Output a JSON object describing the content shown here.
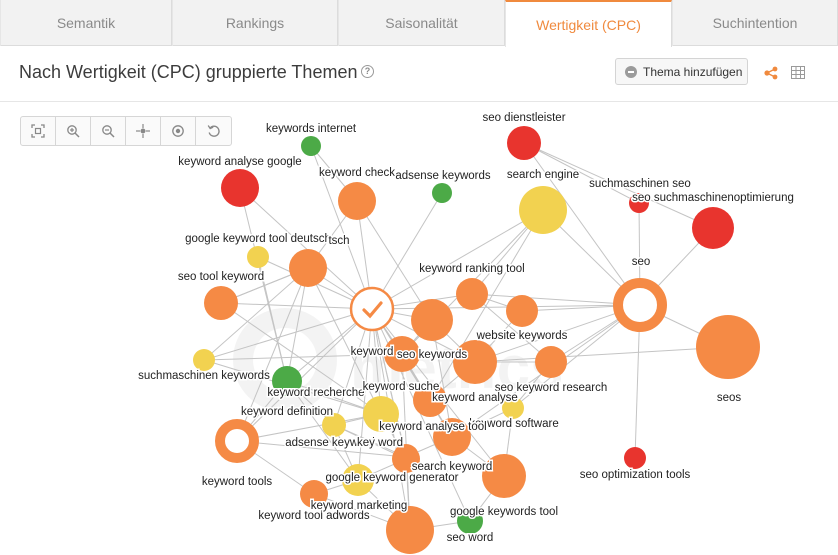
{
  "tabs": [
    {
      "label": "Semantik",
      "active": false
    },
    {
      "label": "Rankings",
      "active": false
    },
    {
      "label": "Saisonalität",
      "active": false
    },
    {
      "label": "Wertigkeit (CPC)",
      "active": true
    },
    {
      "label": "Suchintention",
      "active": false
    }
  ],
  "header": {
    "title": "Nach Wertigkeit (CPC) gruppierte Themen",
    "info_icon": "?",
    "add_button_label": "Thema hinzufügen"
  },
  "toolbar": [
    "fit-screen-icon",
    "zoom-in-icon",
    "zoom-out-icon",
    "center-icon",
    "target-icon",
    "reset-icon"
  ],
  "colors": {
    "accent": "#f08a3e",
    "high": "#e8342e",
    "medium_high": "#f58a45",
    "medium": "#f2d250",
    "low": "#4caa47",
    "edge": "#c4c4c4"
  },
  "graph": {
    "hub": "keyword",
    "nodes": [
      {
        "id": "keywords internet",
        "color": "low",
        "size": 10
      },
      {
        "id": "seo dienstleister",
        "color": "high",
        "size": 17
      },
      {
        "id": "keyword analyse google",
        "color": "high",
        "size": 19
      },
      {
        "id": "keyword check",
        "color": "medium_high",
        "size": 19
      },
      {
        "id": "adsense keywords",
        "color": "low",
        "size": 10
      },
      {
        "id": "search engine",
        "color": "medium",
        "size": 24
      },
      {
        "id": "suchmaschinen seo",
        "color": "high",
        "size": 10
      },
      {
        "id": "seo suchmaschinenoptimierung",
        "color": "high",
        "size": 21
      },
      {
        "id": "google keyword tool deutsch",
        "color": "medium",
        "size": 11
      },
      {
        "id": "tsch",
        "color": "medium_high",
        "size": 19
      },
      {
        "id": "seo",
        "color": "medium_high",
        "size": 27,
        "ring": true
      },
      {
        "id": "seo tool keyword",
        "color": "medium_high",
        "size": 17
      },
      {
        "id": "keyword ranking tool",
        "color": "medium_high",
        "size": 16
      },
      {
        "id": "",
        "color": "medium_high",
        "size": 21
      },
      {
        "id": "website keywords",
        "color": "medium_high",
        "size": 16
      },
      {
        "id": "seos",
        "color": "medium_high",
        "size": 32
      },
      {
        "id": "keyword",
        "color": "medium_high",
        "size": 21,
        "hub": true
      },
      {
        "id": "seo keywords",
        "color": "medium_high",
        "size": 22
      },
      {
        "id": "suchmaschinen keywords",
        "color": "medium",
        "size": 11
      },
      {
        "id": "keyword recherche",
        "color": "low",
        "size": 15
      },
      {
        "id": "keyword suche",
        "color": "medium_high",
        "size": 18
      },
      {
        "id": "seo keyword research",
        "color": "medium_high",
        "size": 16
      },
      {
        "id": "keyword definition",
        "color": "medium",
        "size": 18
      },
      {
        "id": "keyword analyse",
        "color": "medium_high",
        "size": 17
      },
      {
        "id": "keyword software",
        "color": "medium",
        "size": 11
      },
      {
        "id": "keyword tools",
        "color": "medium_high",
        "size": 22,
        "ring": true
      },
      {
        "id": "adsense keyword",
        "color": "medium",
        "size": 12
      },
      {
        "id": "key word",
        "color": "medium_high",
        "size": 13
      },
      {
        "id": "keyword analyse tool",
        "color": "medium_high",
        "size": 19
      },
      {
        "id": "search keyword",
        "color": "medium_high",
        "size": 14
      },
      {
        "id": "seo optimization tools",
        "color": "high",
        "size": 11
      },
      {
        "id": "google keyword generator",
        "color": "medium",
        "size": 16
      },
      {
        "id": "keyword tool adwords",
        "color": "medium_high",
        "size": 14
      },
      {
        "id": "keyword marketing",
        "color": "medium_high",
        "size": 24
      },
      {
        "id": "google keywords tool",
        "color": "low",
        "size": 13
      },
      {
        "id": "seo word",
        "color": "medium_high",
        "size": 22
      }
    ]
  }
}
